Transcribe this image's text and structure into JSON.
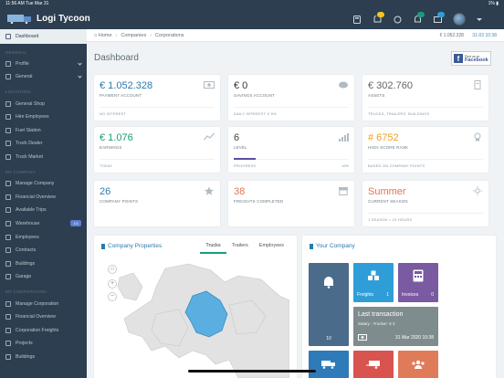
{
  "status": {
    "time": "11:56 AM",
    "date": "Tue Mar 31",
    "battery": "1%"
  },
  "app": {
    "title": "Logi Tycoon"
  },
  "sidebar": {
    "items": [
      {
        "label": "Dashboard",
        "active": true
      },
      {
        "head": "GENERAL"
      },
      {
        "label": "Profile",
        "chevron": true
      },
      {
        "label": "General",
        "chevron": true
      },
      {
        "head": "LOCATIONS"
      },
      {
        "label": "General Shop"
      },
      {
        "label": "Hire Employees"
      },
      {
        "label": "Fuel Station"
      },
      {
        "label": "Truck Dealer"
      },
      {
        "label": "Truck Market"
      },
      {
        "head": "MY COMPANY"
      },
      {
        "label": "Manage Company"
      },
      {
        "label": "Financial Overview"
      },
      {
        "label": "Available Trips"
      },
      {
        "label": "Warehouse",
        "badge": "1/1"
      },
      {
        "label": "Employees"
      },
      {
        "label": "Contracts"
      },
      {
        "label": "Buildings"
      },
      {
        "label": "Garage"
      },
      {
        "head": "MY CORPORATION"
      },
      {
        "label": "Manage Corporation"
      },
      {
        "label": "Financial Overview"
      },
      {
        "label": "Corporation Freights"
      },
      {
        "label": "Projects"
      },
      {
        "label": "Buildings"
      }
    ]
  },
  "breadcrumb": {
    "home": "Home",
    "companies": "Companies",
    "corporations": "Corporations",
    "money": "€ 1.052.328",
    "date": "31-03 10:38"
  },
  "page": {
    "title": "Dashboard"
  },
  "facebook": {
    "line1": "Find us on",
    "line2": "Facebook"
  },
  "cards": {
    "payment": {
      "value": "€ 1.052.328",
      "label": "PAYMENT ACCOUNT",
      "sub": "NO INTEREST",
      "color": "#2a7ab0"
    },
    "savings": {
      "value": "€ 0",
      "label": "SAVINGS ACCOUNT",
      "sub": "DAILY INTEREST: 0.5%",
      "color": "#333333"
    },
    "assets": {
      "value": "€ 302.760",
      "label": "ASSETS",
      "sub": "TRUCKS, TRAILERS, BUILDINGS",
      "color": "#666666"
    },
    "earnings": {
      "value": "€ 1.076",
      "label": "EARNINGS",
      "sub": "TODAY",
      "color": "#1a9c7a"
    },
    "level": {
      "value": "6",
      "label": "LEVEL",
      "sub": "PROGRESS",
      "subr": "19%",
      "color": "#444444",
      "progress": 0.19
    },
    "score": {
      "value": "# 6752",
      "label": "HIGH SCORE RANK",
      "sub": "BASED ON COMPANY POINTS",
      "color": "#f0a020"
    },
    "points": {
      "value": "26",
      "label": "COMPANY POINTS",
      "color": "#2a7ab0"
    },
    "freights": {
      "value": "38",
      "label": "FREIGHTS COMPLETED",
      "color": "#e57350"
    },
    "season": {
      "value": "Summer",
      "label": "CURRENT SEASON",
      "sub": "1 SEASON = 24 HOURS",
      "color": "#e57350"
    }
  },
  "company_panel": {
    "title": "Company Properties",
    "tabs": [
      "Trucks",
      "Trailers",
      "Employees"
    ],
    "zoom_in": "+",
    "zoom_out": "−"
  },
  "your_company": {
    "title": "Your Company",
    "tiles": {
      "alerts": {
        "count": "10",
        "color": "#4a6b8a"
      },
      "freights": {
        "label": "Freights",
        "count": "1",
        "color": "#2f9ed8"
      },
      "invoices": {
        "label": "Invoices",
        "count": "0",
        "color": "#7a5aa0"
      },
      "last": {
        "title": "Last transaction",
        "detail": "Salary - Trucker: € 3",
        "date": "31 Mar 2020 10:38",
        "color": "#7f8c8d"
      }
    }
  }
}
